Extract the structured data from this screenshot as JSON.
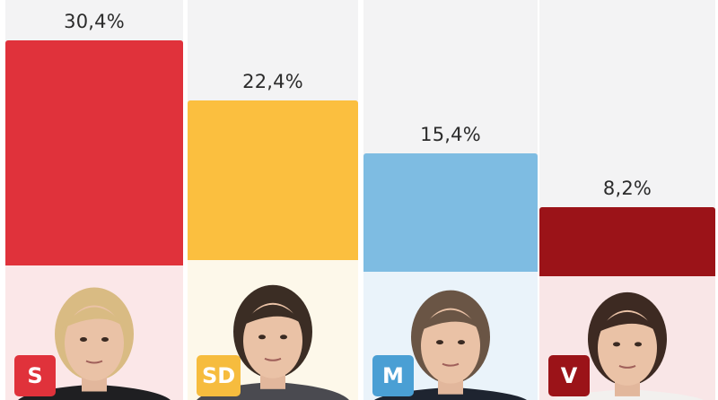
{
  "chart_data": {
    "type": "bar",
    "categories": [
      "S",
      "SD",
      "M",
      "V"
    ],
    "values": [
      30.4,
      22.4,
      15.4,
      8.2
    ],
    "value_labels": [
      "30,4%",
      "22,4%",
      "15,4%",
      "8,2%"
    ],
    "title": "",
    "xlabel": "",
    "ylabel": "",
    "grid": false,
    "legend": "none",
    "bars": [
      {
        "party": "S",
        "label": "30,4%",
        "value": 30.4,
        "color": "#e0323b",
        "badge_color": "#e0323b",
        "photo_bg": "#fbe7e8",
        "hair": "#d9bb83",
        "suit": "#1f1f22"
      },
      {
        "party": "SD",
        "label": "22,4%",
        "value": 22.4,
        "color": "#fbbf3f",
        "badge_color": "#f6bc3e",
        "photo_bg": "#fdf8ea",
        "hair": "#3b2d24",
        "suit": "#4a4a50"
      },
      {
        "party": "M",
        "label": "15,4%",
        "value": 15.4,
        "color": "#7ebce2",
        "badge_color": "#4a9fd4",
        "photo_bg": "#eaf3fa",
        "hair": "#6a5545",
        "suit": "#1e2430"
      },
      {
        "party": "V",
        "label": "8,2%",
        "value": 8.2,
        "color": "#9b1318",
        "badge_color": "#9b1318",
        "photo_bg": "#f9e6e7",
        "hair": "#3d2a22",
        "suit": "#f2f0ee"
      }
    ]
  }
}
